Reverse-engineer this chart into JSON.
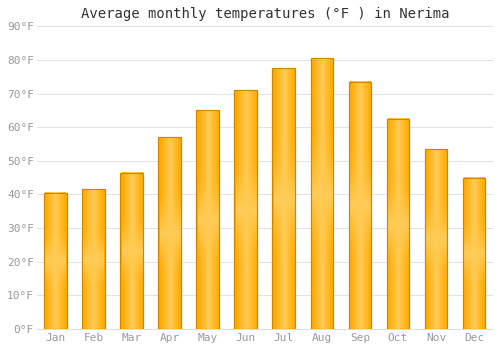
{
  "title": "Average monthly temperatures (°F ) in Nerima",
  "months": [
    "Jan",
    "Feb",
    "Mar",
    "Apr",
    "May",
    "Jun",
    "Jul",
    "Aug",
    "Sep",
    "Oct",
    "Nov",
    "Dec"
  ],
  "values": [
    40.5,
    41.5,
    46.5,
    57.0,
    65.0,
    71.0,
    77.5,
    80.5,
    73.5,
    62.5,
    53.5,
    45.0
  ],
  "bar_color_main": "#FFAA00",
  "bar_color_light": "#FFD060",
  "bar_color_edge": "#CC8800",
  "ylim": [
    0,
    90
  ],
  "yticks": [
    0,
    10,
    20,
    30,
    40,
    50,
    60,
    70,
    80,
    90
  ],
  "ytick_labels": [
    "0°F",
    "10°F",
    "20°F",
    "30°F",
    "40°F",
    "50°F",
    "60°F",
    "70°F",
    "80°F",
    "90°F"
  ],
  "background_color": "#FFFFFF",
  "grid_color": "#DDDDDD",
  "title_fontsize": 10,
  "tick_fontsize": 8,
  "tick_color": "#999999",
  "bar_width": 0.6
}
